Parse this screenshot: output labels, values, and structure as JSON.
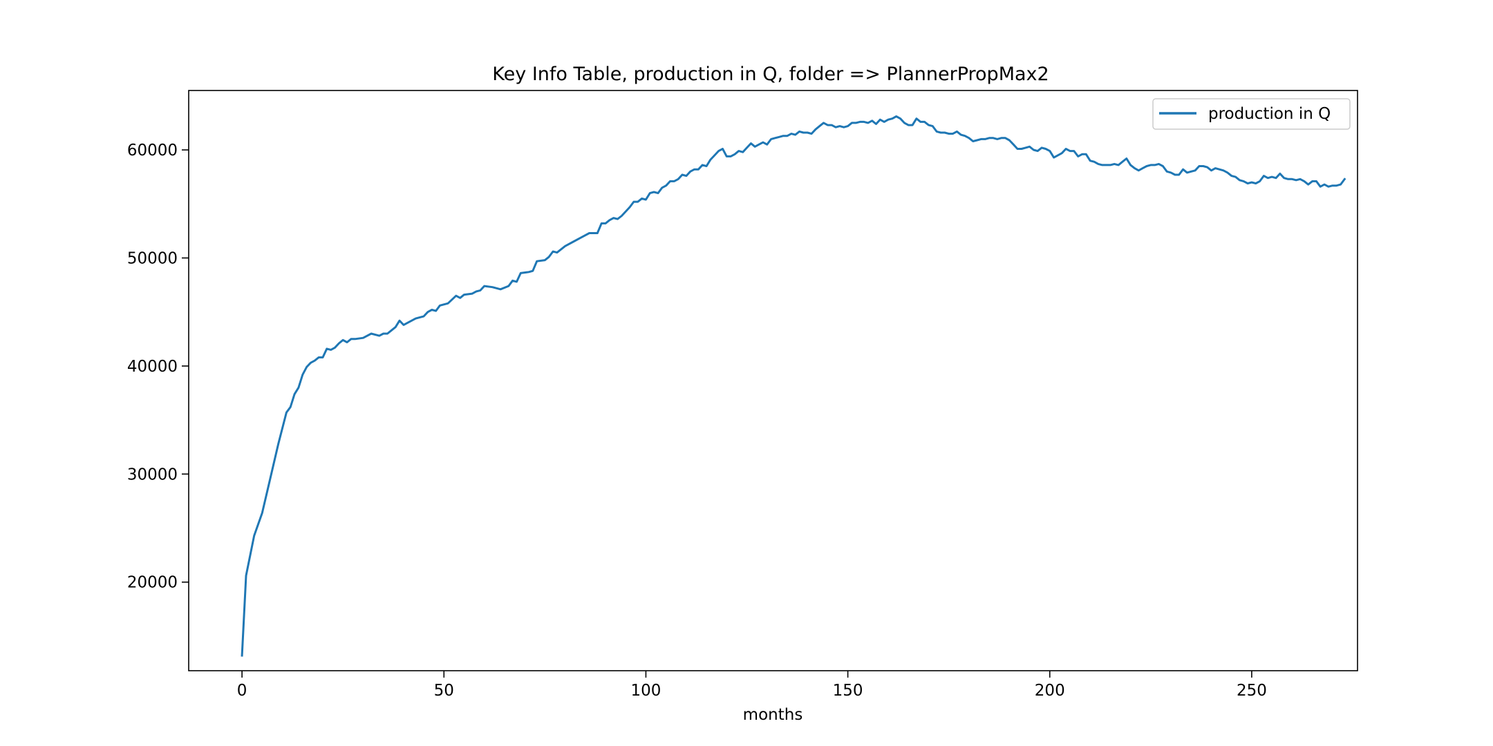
{
  "chart_data": {
    "type": "line",
    "title": "Key Info Table, production in Q, folder => PlannerPropMax2",
    "xlabel": "months",
    "ylabel": "",
    "xlim": [
      -13.2,
      276.2
    ],
    "ylim": [
      11800,
      65500
    ],
    "xticks": [
      0,
      50,
      100,
      150,
      200,
      250
    ],
    "yticks": [
      20000,
      30000,
      40000,
      50000,
      60000
    ],
    "legend": {
      "position": "top-right",
      "entries": [
        "production in Q"
      ]
    },
    "grid": false,
    "series": [
      {
        "name": "production in Q",
        "color": "#1f77b4",
        "points": [
          [
            0,
            13200
          ],
          [
            1,
            20600
          ],
          [
            3,
            24300
          ],
          [
            5,
            26400
          ],
          [
            7,
            29600
          ],
          [
            9,
            32800
          ],
          [
            11,
            35700
          ],
          [
            12,
            36200
          ],
          [
            13,
            37400
          ],
          [
            14,
            38000
          ],
          [
            15,
            39200
          ],
          [
            16,
            39900
          ],
          [
            17,
            40300
          ],
          [
            18,
            40500
          ],
          [
            19,
            40800
          ],
          [
            20,
            40800
          ],
          [
            21,
            41600
          ],
          [
            22,
            41500
          ],
          [
            23,
            41700
          ],
          [
            24,
            42100
          ],
          [
            25,
            42400
          ],
          [
            26,
            42200
          ],
          [
            27,
            42500
          ],
          [
            28,
            42500
          ],
          [
            30,
            42600
          ],
          [
            32,
            43000
          ],
          [
            34,
            42800
          ],
          [
            35,
            43000
          ],
          [
            36,
            43000
          ],
          [
            37,
            43300
          ],
          [
            38,
            43600
          ],
          [
            39,
            44200
          ],
          [
            40,
            43800
          ],
          [
            41,
            44000
          ],
          [
            43,
            44400
          ],
          [
            45,
            44600
          ],
          [
            46,
            45000
          ],
          [
            47,
            45200
          ],
          [
            48,
            45100
          ],
          [
            49,
            45600
          ],
          [
            51,
            45800
          ],
          [
            53,
            46500
          ],
          [
            54,
            46300
          ],
          [
            55,
            46600
          ],
          [
            57,
            46700
          ],
          [
            58,
            46900
          ],
          [
            59,
            47000
          ],
          [
            60,
            47400
          ],
          [
            62,
            47300
          ],
          [
            64,
            47100
          ],
          [
            66,
            47400
          ],
          [
            67,
            47900
          ],
          [
            68,
            47800
          ],
          [
            69,
            48600
          ],
          [
            71,
            48700
          ],
          [
            72,
            48800
          ],
          [
            73,
            49700
          ],
          [
            75,
            49800
          ],
          [
            76,
            50100
          ],
          [
            77,
            50600
          ],
          [
            78,
            50500
          ],
          [
            80,
            51100
          ],
          [
            82,
            51500
          ],
          [
            84,
            51900
          ],
          [
            86,
            52300
          ],
          [
            88,
            52300
          ],
          [
            89,
            53200
          ],
          [
            90,
            53200
          ],
          [
            91,
            53500
          ],
          [
            92,
            53700
          ],
          [
            93,
            53600
          ],
          [
            94,
            53900
          ],
          [
            96,
            54700
          ],
          [
            97,
            55200
          ],
          [
            98,
            55200
          ],
          [
            99,
            55500
          ],
          [
            100,
            55400
          ],
          [
            101,
            56000
          ],
          [
            102,
            56100
          ],
          [
            103,
            56000
          ],
          [
            104,
            56500
          ],
          [
            105,
            56700
          ],
          [
            106,
            57100
          ],
          [
            107,
            57100
          ],
          [
            108,
            57300
          ],
          [
            109,
            57700
          ],
          [
            110,
            57600
          ],
          [
            111,
            58000
          ],
          [
            112,
            58200
          ],
          [
            113,
            58200
          ],
          [
            114,
            58600
          ],
          [
            115,
            58500
          ],
          [
            116,
            59100
          ],
          [
            117,
            59500
          ],
          [
            118,
            59900
          ],
          [
            119,
            60100
          ],
          [
            120,
            59400
          ],
          [
            121,
            59400
          ],
          [
            122,
            59600
          ],
          [
            123,
            59900
          ],
          [
            124,
            59800
          ],
          [
            125,
            60200
          ],
          [
            126,
            60600
          ],
          [
            127,
            60300
          ],
          [
            128,
            60500
          ],
          [
            129,
            60700
          ],
          [
            130,
            60500
          ],
          [
            131,
            61000
          ],
          [
            132,
            61100
          ],
          [
            133,
            61200
          ],
          [
            134,
            61300
          ],
          [
            135,
            61300
          ],
          [
            136,
            61500
          ],
          [
            137,
            61400
          ],
          [
            138,
            61700
          ],
          [
            139,
            61600
          ],
          [
            140,
            61600
          ],
          [
            141,
            61500
          ],
          [
            142,
            61900
          ],
          [
            143,
            62200
          ],
          [
            144,
            62500
          ],
          [
            145,
            62300
          ],
          [
            146,
            62300
          ],
          [
            147,
            62100
          ],
          [
            148,
            62200
          ],
          [
            149,
            62100
          ],
          [
            150,
            62200
          ],
          [
            151,
            62500
          ],
          [
            152,
            62500
          ],
          [
            153,
            62600
          ],
          [
            154,
            62600
          ],
          [
            155,
            62500
          ],
          [
            156,
            62700
          ],
          [
            157,
            62400
          ],
          [
            158,
            62800
          ],
          [
            159,
            62600
          ],
          [
            160,
            62800
          ],
          [
            161,
            62900
          ],
          [
            162,
            63100
          ],
          [
            163,
            62900
          ],
          [
            164,
            62500
          ],
          [
            165,
            62300
          ],
          [
            166,
            62300
          ],
          [
            167,
            62900
          ],
          [
            168,
            62600
          ],
          [
            169,
            62600
          ],
          [
            170,
            62300
          ],
          [
            171,
            62200
          ],
          [
            172,
            61700
          ],
          [
            173,
            61600
          ],
          [
            174,
            61600
          ],
          [
            175,
            61500
          ],
          [
            176,
            61500
          ],
          [
            177,
            61700
          ],
          [
            178,
            61400
          ],
          [
            179,
            61300
          ],
          [
            180,
            61100
          ],
          [
            181,
            60800
          ],
          [
            182,
            60900
          ],
          [
            183,
            61000
          ],
          [
            184,
            61000
          ],
          [
            185,
            61100
          ],
          [
            186,
            61100
          ],
          [
            187,
            61000
          ],
          [
            188,
            61100
          ],
          [
            189,
            61100
          ],
          [
            190,
            60900
          ],
          [
            191,
            60500
          ],
          [
            192,
            60100
          ],
          [
            193,
            60100
          ],
          [
            194,
            60200
          ],
          [
            195,
            60300
          ],
          [
            196,
            60000
          ],
          [
            197,
            59900
          ],
          [
            198,
            60200
          ],
          [
            199,
            60100
          ],
          [
            200,
            59900
          ],
          [
            201,
            59300
          ],
          [
            202,
            59500
          ],
          [
            203,
            59700
          ],
          [
            204,
            60100
          ],
          [
            205,
            59900
          ],
          [
            206,
            59900
          ],
          [
            207,
            59400
          ],
          [
            208,
            59600
          ],
          [
            209,
            59600
          ],
          [
            210,
            59000
          ],
          [
            211,
            58900
          ],
          [
            212,
            58700
          ],
          [
            213,
            58600
          ],
          [
            214,
            58600
          ],
          [
            215,
            58600
          ],
          [
            216,
            58700
          ],
          [
            217,
            58600
          ],
          [
            218,
            58900
          ],
          [
            219,
            59200
          ],
          [
            220,
            58600
          ],
          [
            221,
            58300
          ],
          [
            222,
            58100
          ],
          [
            223,
            58300
          ],
          [
            224,
            58500
          ],
          [
            225,
            58600
          ],
          [
            226,
            58600
          ],
          [
            227,
            58700
          ],
          [
            228,
            58500
          ],
          [
            229,
            58000
          ],
          [
            230,
            57900
          ],
          [
            231,
            57700
          ],
          [
            232,
            57700
          ],
          [
            233,
            58200
          ],
          [
            234,
            57900
          ],
          [
            235,
            58000
          ],
          [
            236,
            58100
          ],
          [
            237,
            58500
          ],
          [
            238,
            58500
          ],
          [
            239,
            58400
          ],
          [
            240,
            58100
          ],
          [
            241,
            58300
          ],
          [
            242,
            58200
          ],
          [
            243,
            58100
          ],
          [
            244,
            57900
          ],
          [
            245,
            57600
          ],
          [
            246,
            57500
          ],
          [
            247,
            57200
          ],
          [
            248,
            57100
          ],
          [
            249,
            56900
          ],
          [
            250,
            57000
          ],
          [
            251,
            56900
          ],
          [
            252,
            57100
          ],
          [
            253,
            57600
          ],
          [
            254,
            57400
          ],
          [
            255,
            57500
          ],
          [
            256,
            57400
          ],
          [
            257,
            57800
          ],
          [
            258,
            57400
          ],
          [
            259,
            57300
          ],
          [
            260,
            57300
          ],
          [
            261,
            57200
          ],
          [
            262,
            57300
          ],
          [
            263,
            57100
          ],
          [
            264,
            56800
          ],
          [
            265,
            57100
          ],
          [
            266,
            57100
          ],
          [
            267,
            56600
          ],
          [
            268,
            56800
          ],
          [
            269,
            56600
          ],
          [
            270,
            56700
          ],
          [
            271,
            56700
          ],
          [
            272,
            56800
          ],
          [
            273,
            57300
          ]
        ]
      }
    ]
  }
}
